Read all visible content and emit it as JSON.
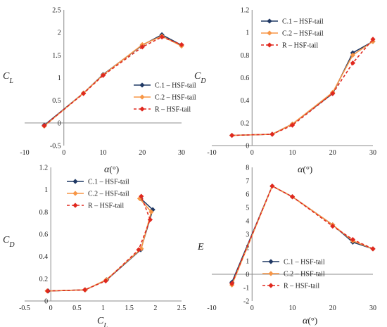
{
  "chart_data": [
    {
      "type": "line",
      "x_name": "alpha",
      "y_name": "CL",
      "xlabel_main": "α",
      "xlabel_unit": "(°)",
      "ylabel_main": "C",
      "ylabel_sub": "L",
      "xlim": [
        -10,
        30
      ],
      "ylim": [
        -0.5,
        2.5
      ],
      "xticks": [
        -10,
        0,
        10,
        20,
        30
      ],
      "yticks": [
        -0.5,
        0,
        0.5,
        1,
        1.5,
        2,
        2.5
      ],
      "xtick_labels": [
        "-10",
        "0",
        "10",
        "20",
        "30"
      ],
      "ytick_labels": [
        "-0.5",
        "0",
        "0.5",
        "1",
        "1.5",
        "2",
        "2.5"
      ],
      "grid": "none",
      "legend_position": "center-right",
      "series": [
        {
          "name": "C.1 – HSF-tail",
          "color": "#1f3864",
          "marker": "diamond",
          "style": "solid",
          "x": [
            -5,
            5,
            10,
            20,
            25,
            30
          ],
          "y": [
            -0.05,
            0.66,
            1.07,
            1.72,
            1.95,
            1.72
          ]
        },
        {
          "name": "C.2 – HSF-tail",
          "color": "#f79646",
          "marker": "diamond",
          "style": "solid",
          "x": [
            -5,
            5,
            10,
            20,
            25,
            30
          ],
          "y": [
            -0.07,
            0.66,
            1.06,
            1.73,
            1.92,
            1.7
          ]
        },
        {
          "name": "R – HSF-tail",
          "color": "#e0281e",
          "marker": "diamond",
          "style": "dashed",
          "x": [
            -5,
            5,
            10,
            20,
            25,
            30
          ],
          "y": [
            -0.06,
            0.65,
            1.05,
            1.68,
            1.9,
            1.73
          ]
        }
      ]
    },
    {
      "type": "line",
      "x_name": "alpha",
      "y_name": "CD",
      "xlabel_main": "α",
      "xlabel_unit": "(°)",
      "ylabel_main": "C",
      "ylabel_sub": "D",
      "xlim": [
        -10,
        30
      ],
      "ylim": [
        0,
        1.2
      ],
      "xticks": [
        -10,
        0,
        10,
        20,
        30
      ],
      "yticks": [
        0,
        0.2,
        0.4,
        0.6,
        0.8,
        1,
        1.2
      ],
      "xtick_labels": [
        "-10",
        "0",
        "10",
        "20",
        "30"
      ],
      "ytick_labels": [
        "0",
        "0.2",
        "0.4",
        "0.6",
        "0.8",
        "1",
        "1.2"
      ],
      "grid": "none",
      "legend_position": "top-center",
      "series": [
        {
          "name": "C.1 – HSF-tail",
          "color": "#1f3864",
          "marker": "diamond",
          "style": "solid",
          "x": [
            -5,
            5,
            10,
            20,
            25,
            30
          ],
          "y": [
            0.09,
            0.1,
            0.19,
            0.46,
            0.82,
            0.92
          ]
        },
        {
          "name": "C.2 – HSF-tail",
          "color": "#f79646",
          "marker": "diamond",
          "style": "solid",
          "x": [
            -5,
            5,
            10,
            20,
            25,
            30
          ],
          "y": [
            0.09,
            0.1,
            0.19,
            0.47,
            0.8,
            0.92
          ]
        },
        {
          "name": "R – HSF-tail",
          "color": "#e0281e",
          "marker": "diamond",
          "style": "dashed",
          "x": [
            -5,
            5,
            10,
            20,
            25,
            30
          ],
          "y": [
            0.09,
            0.1,
            0.18,
            0.46,
            0.73,
            0.94
          ]
        }
      ]
    },
    {
      "type": "line",
      "x_name": "CL",
      "y_name": "CD",
      "xlabel_main": "C",
      "xlabel_sub": "L",
      "ylabel_main": "C",
      "ylabel_sub": "D",
      "xlim": [
        -0.5,
        2.5
      ],
      "ylim": [
        0,
        1.2
      ],
      "xticks": [
        -0.5,
        0,
        0.5,
        1,
        1.5,
        2,
        2.5
      ],
      "yticks": [
        0,
        0.2,
        0.4,
        0.6,
        0.8,
        1,
        1.2
      ],
      "xtick_labels": [
        "-0.5",
        "0",
        "0.5",
        "1",
        "1.5",
        "2",
        "2.5"
      ],
      "ytick_labels": [
        "0",
        "0.2",
        "0.4",
        "0.6",
        "0.8",
        "1",
        "1.2"
      ],
      "grid": "none",
      "legend_position": "top-center",
      "series": [
        {
          "name": "C.1 – HSF-tail",
          "color": "#1f3864",
          "marker": "diamond",
          "style": "solid",
          "x": [
            -0.05,
            0.66,
            1.07,
            1.72,
            1.95,
            1.72
          ],
          "y": [
            0.09,
            0.1,
            0.19,
            0.46,
            0.82,
            0.92
          ]
        },
        {
          "name": "C.2 – HSF-tail",
          "color": "#f79646",
          "marker": "diamond",
          "style": "solid",
          "x": [
            -0.07,
            0.66,
            1.06,
            1.73,
            1.92,
            1.7
          ],
          "y": [
            0.09,
            0.1,
            0.19,
            0.47,
            0.8,
            0.92
          ]
        },
        {
          "name": "R – HSF-tail",
          "color": "#e0281e",
          "marker": "diamond",
          "style": "dashed",
          "x": [
            -0.06,
            0.65,
            1.05,
            1.68,
            1.9,
            1.73
          ],
          "y": [
            0.09,
            0.1,
            0.18,
            0.46,
            0.73,
            0.94
          ]
        }
      ]
    },
    {
      "type": "line",
      "x_name": "alpha",
      "y_name": "E",
      "xlabel_main": "α",
      "xlabel_unit": "(°)",
      "ylabel_main": "E",
      "xlim": [
        -10,
        30
      ],
      "ylim": [
        -2,
        8
      ],
      "xticks": [
        -10,
        0,
        10,
        20,
        30
      ],
      "yticks": [
        -2,
        -1,
        0,
        1,
        2,
        3,
        4,
        5,
        6,
        7,
        8
      ],
      "xtick_labels": [
        "-10",
        "0",
        "10",
        "20",
        "30"
      ],
      "ytick_labels": [
        "-2",
        "-1",
        "0",
        "1",
        "2",
        "3",
        "4",
        "5",
        "6",
        "7",
        "8"
      ],
      "grid": "none",
      "legend_position": "bottom-right",
      "series": [
        {
          "name": "C.1 – HSF-tail",
          "color": "#1f3864",
          "marker": "diamond",
          "style": "solid",
          "x": [
            -5,
            5,
            10,
            20,
            25,
            30
          ],
          "y": [
            -0.6,
            6.6,
            5.8,
            3.7,
            2.4,
            1.9
          ]
        },
        {
          "name": "C.2 – HSF-tail",
          "color": "#f79646",
          "marker": "diamond",
          "style": "solid",
          "x": [
            -5,
            5,
            10,
            20,
            25,
            30
          ],
          "y": [
            -0.8,
            6.6,
            5.8,
            3.7,
            2.5,
            1.9
          ]
        },
        {
          "name": "R – HSF-tail",
          "color": "#e0281e",
          "marker": "diamond",
          "style": "dashed",
          "x": [
            -5,
            5,
            10,
            20,
            25,
            30
          ],
          "y": [
            -0.7,
            6.6,
            5.8,
            3.6,
            2.6,
            1.9
          ]
        }
      ]
    }
  ]
}
